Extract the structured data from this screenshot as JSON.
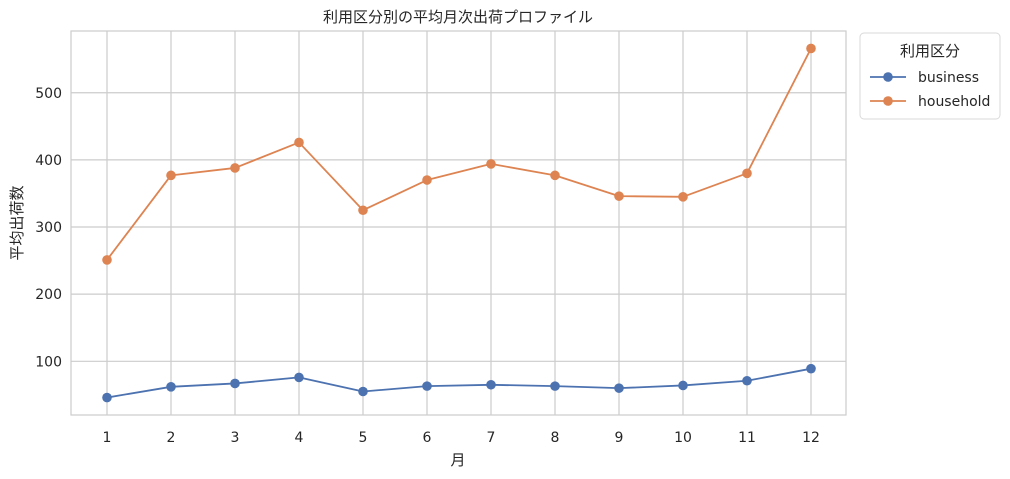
{
  "chart_data": {
    "type": "line",
    "title": "利用区分別の平均月次出荷プロファイル",
    "xlabel": "月",
    "ylabel": "平均出荷数",
    "x": [
      1,
      2,
      3,
      4,
      5,
      6,
      7,
      8,
      9,
      10,
      11,
      12
    ],
    "xticks": [
      "1",
      "2",
      "3",
      "4",
      "5",
      "6",
      "7",
      "8",
      "9",
      "10",
      "11",
      "12"
    ],
    "yticks": [
      100,
      200,
      300,
      400,
      500
    ],
    "ylim": [
      20,
      592
    ],
    "grid": true,
    "legend": {
      "title": "利用区分",
      "placement": "outside-top-right"
    },
    "series": [
      {
        "name": "business",
        "color": "#4c72b0",
        "values": [
          46,
          62,
          67,
          76,
          55,
          63,
          65,
          63,
          60,
          64,
          71,
          89
        ]
      },
      {
        "name": "household",
        "color": "#dd8452",
        "values": [
          251,
          377,
          388,
          426,
          325,
          370,
          394,
          377,
          346,
          345,
          380,
          566
        ]
      }
    ]
  }
}
